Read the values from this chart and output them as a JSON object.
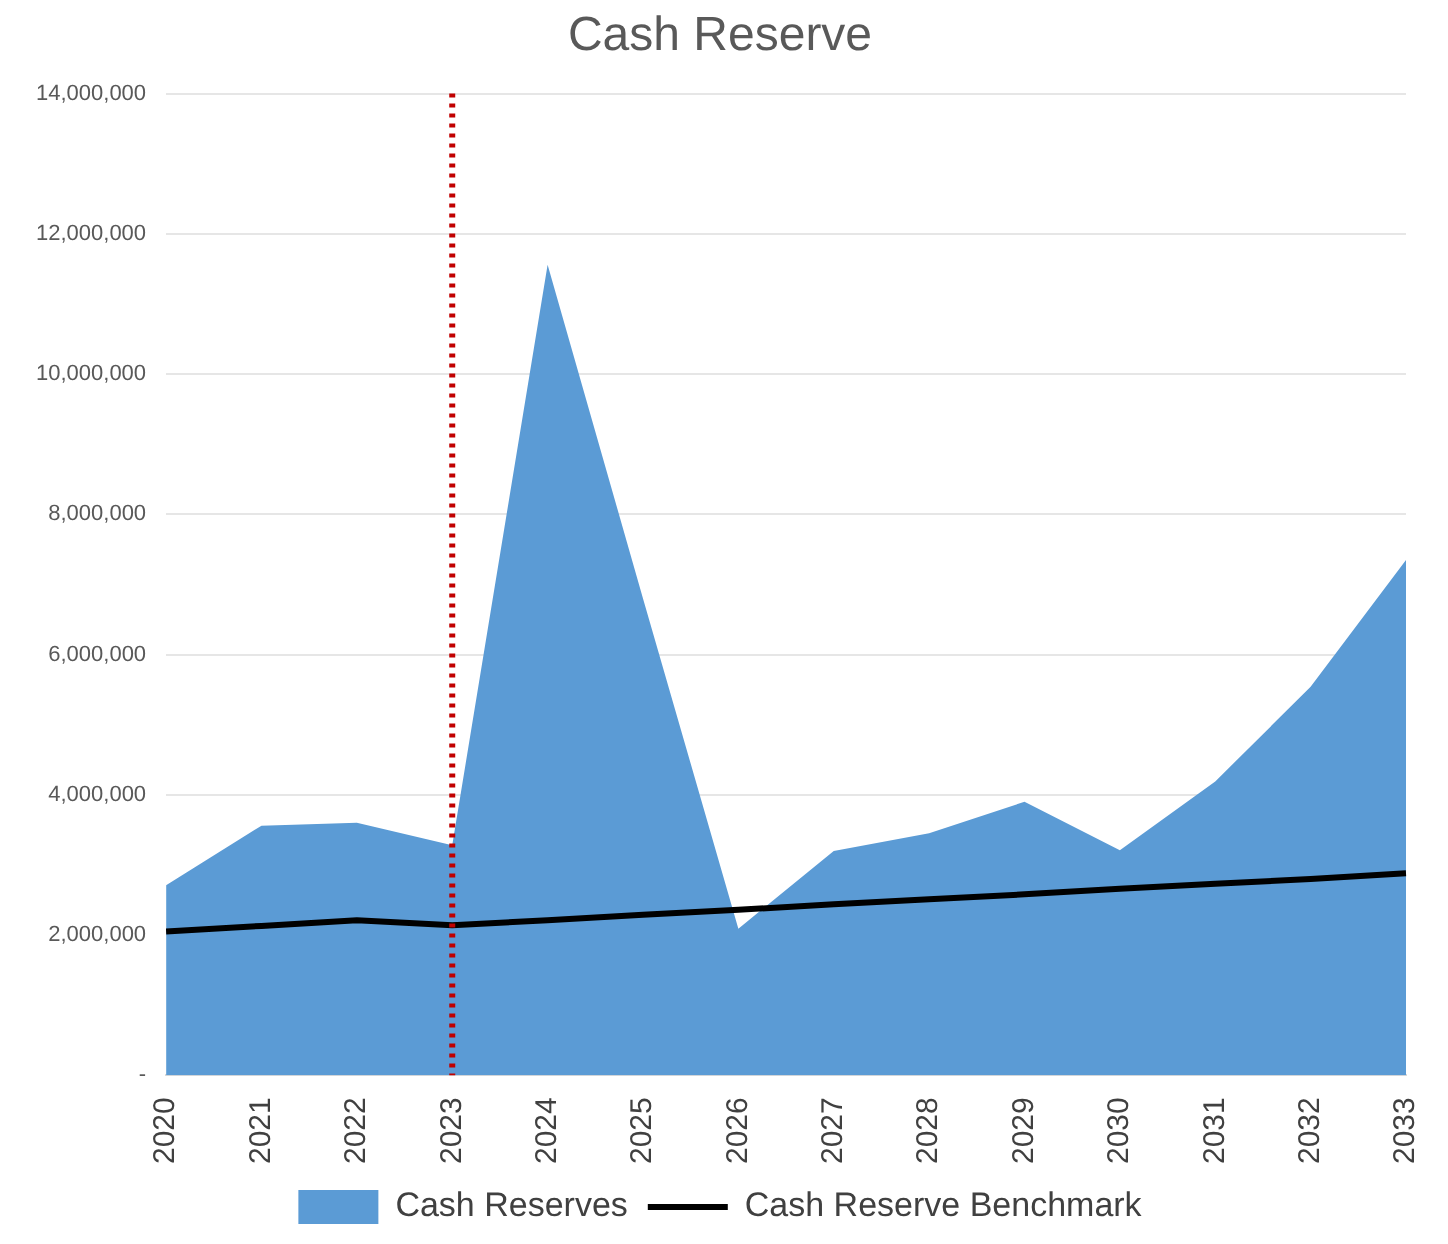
{
  "chart_data": {
    "type": "area",
    "title": "Cash Reserve",
    "categories": [
      "2020",
      "2021",
      "2022",
      "2023",
      "2024",
      "2025",
      "2026",
      "2027",
      "2028",
      "2029",
      "2030",
      "2031",
      "2032",
      "2033"
    ],
    "series": [
      {
        "name": "Cash Reserves",
        "color": "#5b9bd5",
        "values": [
          2710000,
          3560000,
          3600000,
          3280000,
          11560000,
          6800000,
          2090000,
          3200000,
          3450000,
          3900000,
          3210000,
          4190000,
          5540000,
          7350000
        ]
      },
      {
        "name": "Cash Reserve Benchmark",
        "type": "line",
        "color": "#000000",
        "values": [
          2050000,
          2130000,
          2210000,
          2140000,
          2210000,
          2290000,
          2360000,
          2440000,
          2510000,
          2580000,
          2660000,
          2730000,
          2800000,
          2880000
        ]
      }
    ],
    "ylim": [
      0,
      14000000
    ],
    "yticks": [
      {
        "value": 0,
        "label": "-"
      },
      {
        "value": 2000000,
        "label": "2,000,000"
      },
      {
        "value": 4000000,
        "label": "4,000,000"
      },
      {
        "value": 6000000,
        "label": "6,000,000"
      },
      {
        "value": 8000000,
        "label": "8,000,000"
      },
      {
        "value": 10000000,
        "label": "10,000,000"
      },
      {
        "value": 12000000,
        "label": "12,000,000"
      },
      {
        "value": 14000000,
        "label": "14,000,000"
      }
    ],
    "ref_lines": [
      {
        "axis": "x",
        "value": "2023",
        "color": "#c00000",
        "line_style": "dotted"
      }
    ],
    "grid": "y",
    "legend": "bottom",
    "marker": "none"
  }
}
